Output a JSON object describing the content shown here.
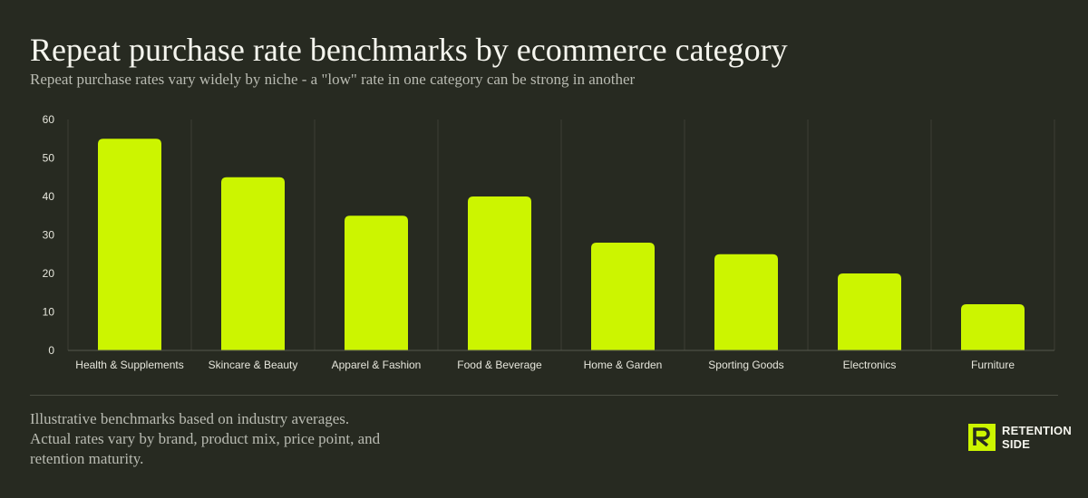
{
  "header": {
    "title": "Repeat purchase rate benchmarks by ecommerce category",
    "subtitle": "Repeat purchase rates vary widely by niche - a \"low\" rate in one category can be strong in another"
  },
  "chart_data": {
    "type": "bar",
    "categories": [
      "Health & Supplements",
      "Skincare & Beauty",
      "Apparel & Fashion",
      "Food & Beverage",
      "Home & Garden",
      "Sporting Goods",
      "Electronics",
      "Furniture"
    ],
    "values": [
      55,
      45,
      35,
      40,
      28,
      25,
      20,
      12
    ],
    "title": "",
    "xlabel": "",
    "ylabel": "",
    "ylim": [
      0,
      60
    ],
    "yticks": [
      0,
      10,
      20,
      30,
      40,
      50,
      60
    ],
    "grid": true,
    "legend": "none",
    "bar_color": "#ccf500"
  },
  "footer": {
    "note": "Illustrative benchmarks based on industry averages. Actual rates vary by brand, product mix, price point, and retention maturity."
  },
  "logo": {
    "line1": "RETENTION",
    "line2": "SIDE"
  },
  "colors": {
    "background": "#272a21",
    "accent": "#ccf500"
  }
}
